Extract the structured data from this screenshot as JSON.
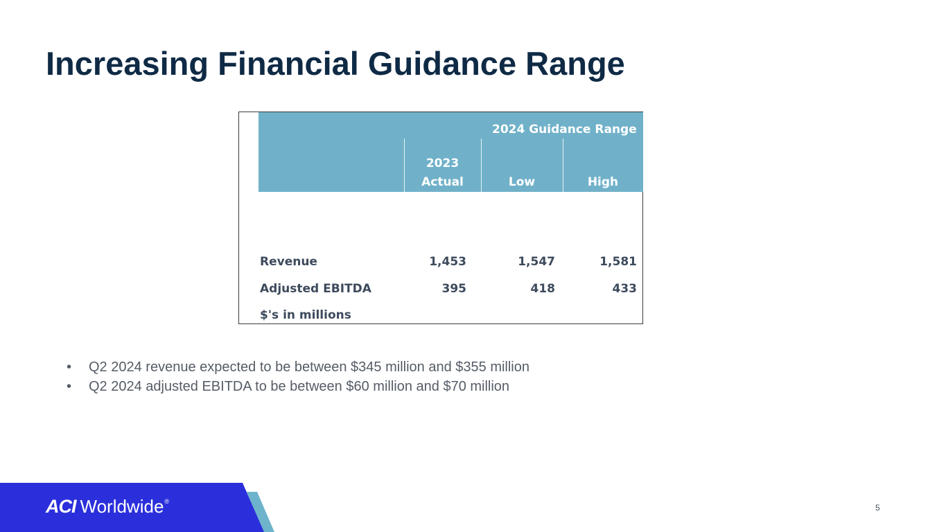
{
  "slide": {
    "title": "Increasing Financial Guidance Range",
    "page_number": "5"
  },
  "table": {
    "group_header": "2024 Guidance Range",
    "col_actual_line1": "2023",
    "col_actual_line2": "Actual",
    "col_low": "Low",
    "col_high": "High",
    "rows": [
      {
        "label": "Revenue",
        "actual": "1,453",
        "low": "1,547",
        "high": "1,581"
      },
      {
        "label": "Adjusted EBITDA",
        "actual": "395",
        "low": "418",
        "high": "433"
      }
    ],
    "footnote": "$'s in millions"
  },
  "bullets": [
    "Q2 2024 revenue expected to be between $345 million and $355 million",
    "Q2 2024 adjusted EBITDA to be between $60 million and $70 million"
  ],
  "bullet_glyph": "•",
  "logo": {
    "mark": "ACI",
    "word": "Worldwide",
    "reg": "®"
  },
  "colors": {
    "title": "#0f2a45",
    "header_band": "#70b1c9",
    "footer_blue": "#2b2fdb",
    "footer_teal": "#6eb3cc"
  }
}
